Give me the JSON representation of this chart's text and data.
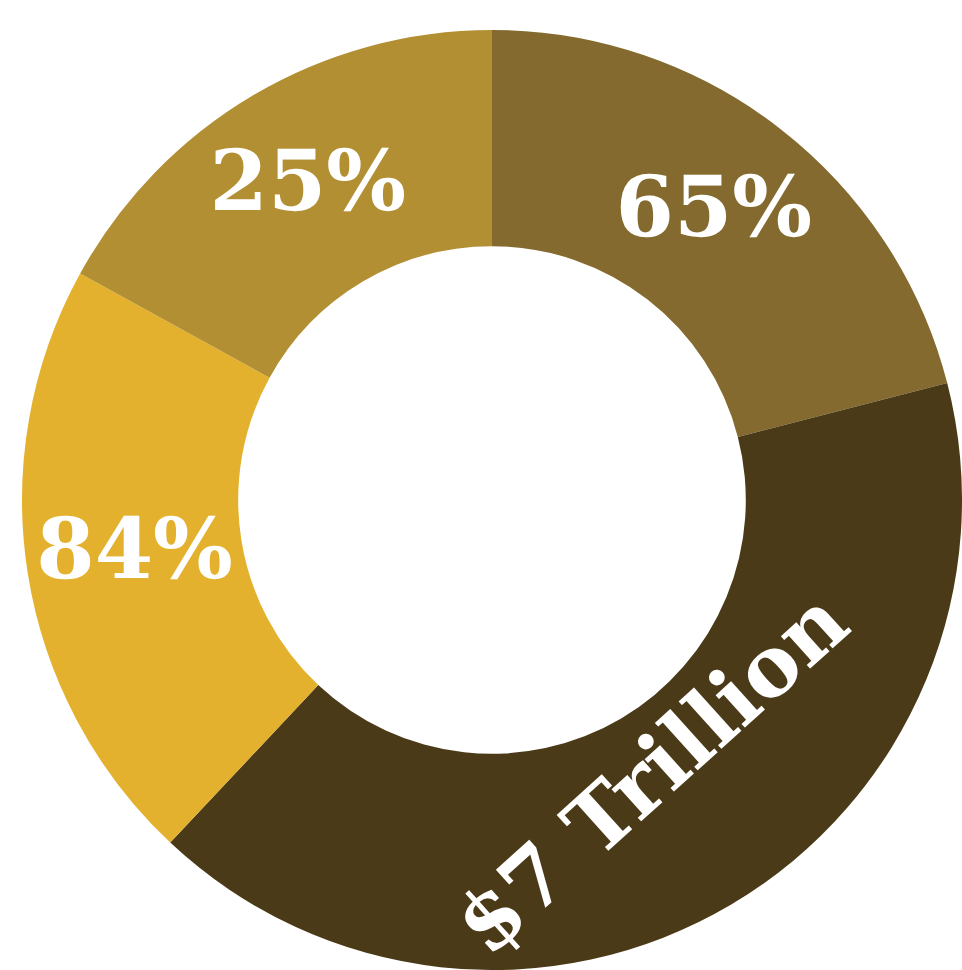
{
  "chart_data": {
    "type": "donut",
    "categories": [
      null,
      null,
      null,
      null
    ],
    "values": [
      21,
      41,
      21,
      17
    ],
    "colors": [
      "#846a2e",
      "#4a3a18",
      "#e3b12d",
      "#b38f34"
    ],
    "annotations": [
      "65%",
      "$7 Trillion",
      "84%",
      "25%"
    ],
    "legend": false
  }
}
